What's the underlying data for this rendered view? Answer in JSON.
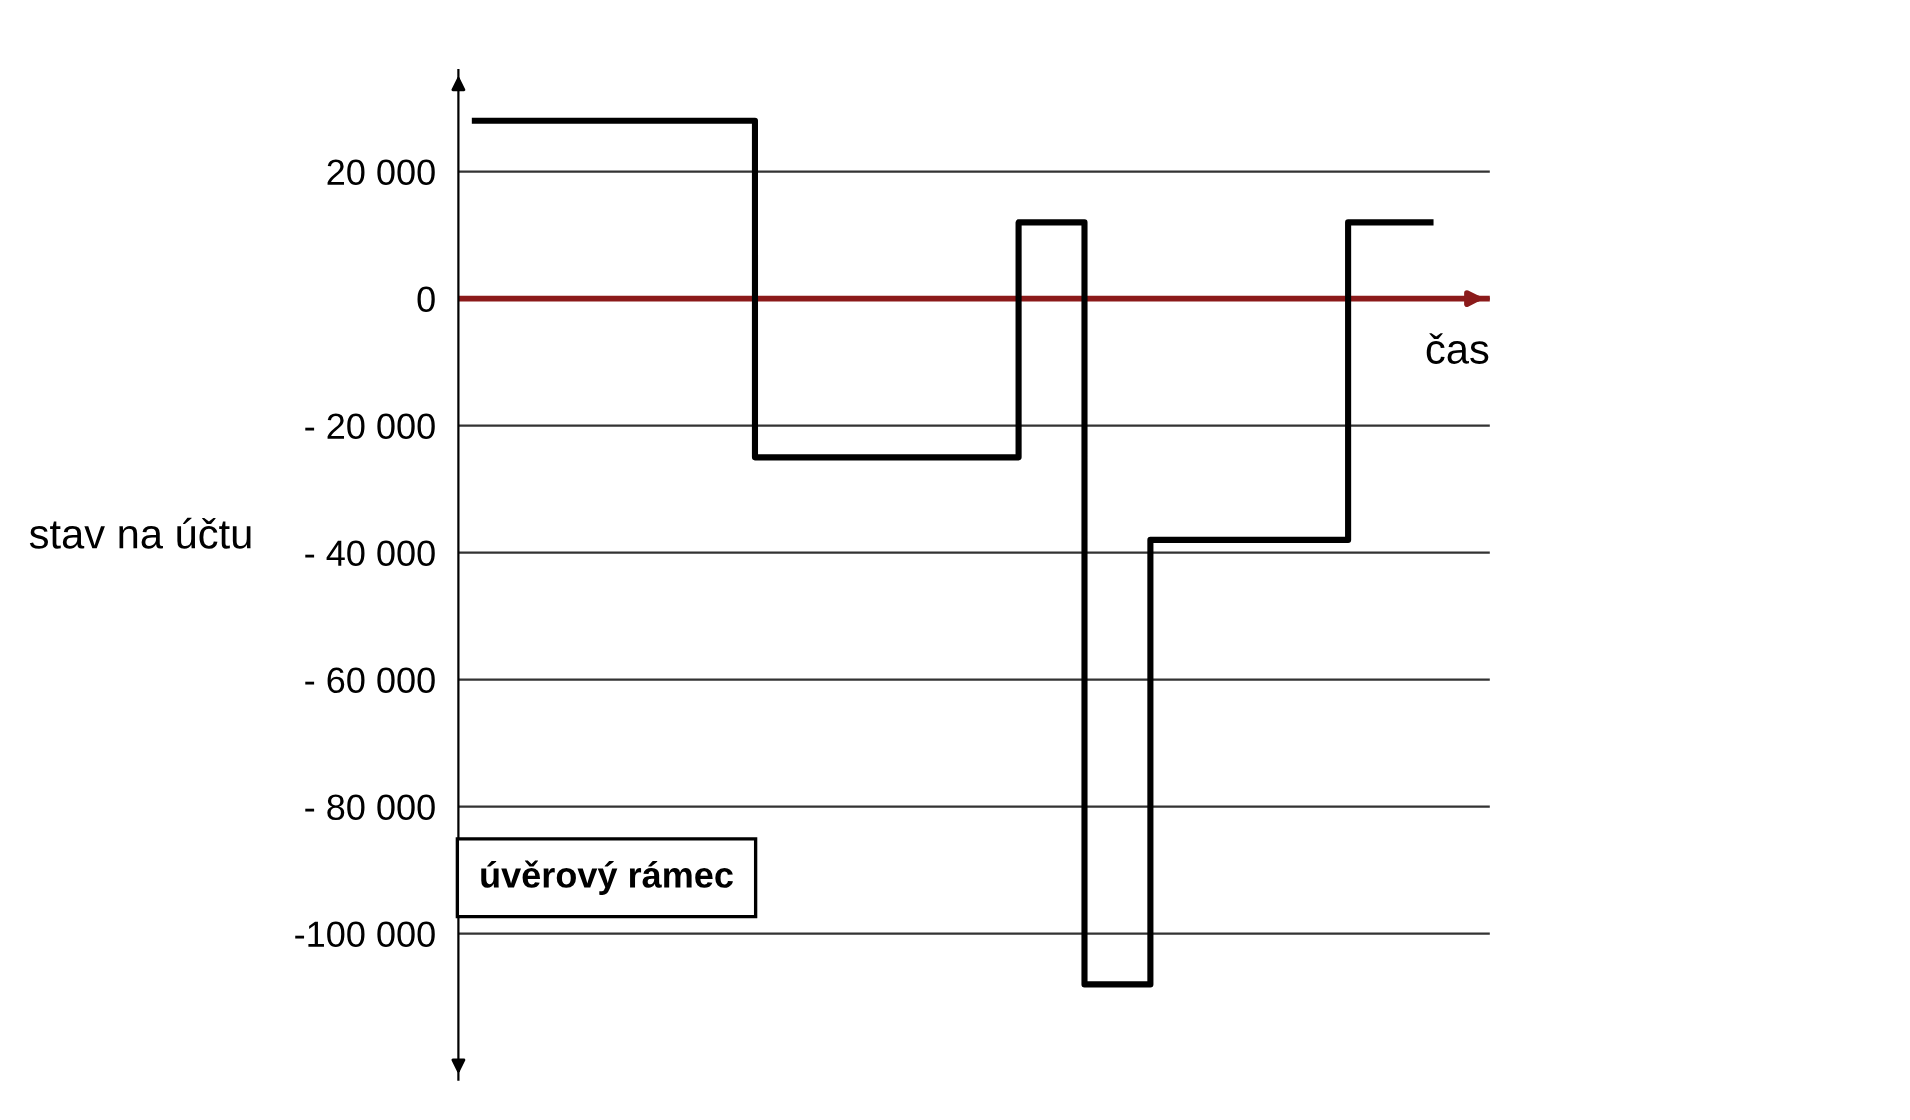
{
  "chart_data": {
    "type": "step",
    "xlabel": "čas",
    "ylabel": "stav na účtu",
    "categories": [
      null,
      null,
      null,
      null,
      null,
      null,
      null,
      null,
      null,
      null,
      null,
      null,
      null,
      null,
      null,
      null,
      null,
      null,
      null,
      null,
      null,
      null,
      null,
      null,
      null,
      null,
      null,
      null,
      null,
      null
    ],
    "series": [
      {
        "color": "#000000",
        "values": [
          28000,
          28000,
          28000,
          28000,
          28000,
          28000,
          28000,
          28000,
          28000,
          -25000,
          -25000,
          -25000,
          -25000,
          -25000,
          -25000,
          -25000,
          -25000,
          12000,
          12000,
          -108000,
          -108000,
          -38000,
          -38000,
          -38000,
          -38000,
          -38000,
          -38000,
          12000,
          12000,
          12000
        ]
      }
    ],
    "ylim": [
      -123000,
      36000
    ],
    "yticks": [
      {
        "value": 20000,
        "label": "20 000"
      },
      0,
      {
        "value": -20000,
        "label": "- 20 000"
      },
      {
        "value": -40000,
        "label": "- 40 000"
      },
      {
        "value": -60000,
        "label": "- 60 000"
      },
      {
        "value": -80000,
        "label": "- 80 000"
      },
      {
        "value": -100000,
        "label": "-100 000"
      }
    ],
    "ref_lines": [
      {
        "axis": "y",
        "value": 0,
        "color": "#8b1a1a"
      }
    ],
    "grid": "y",
    "tick_labels": "y",
    "line_style": "solid",
    "marker": "none",
    "annotations": [
      "úvěrový rámec"
    ]
  }
}
